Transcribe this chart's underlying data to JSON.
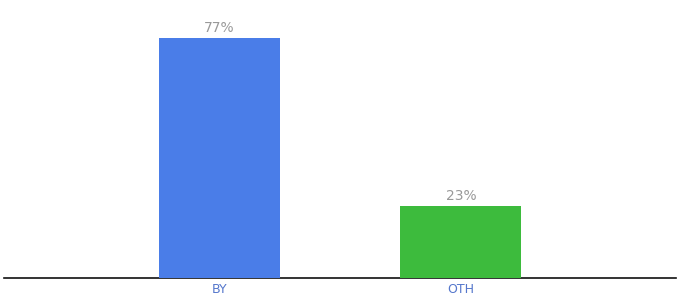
{
  "categories": [
    "BY",
    "OTH"
  ],
  "values": [
    77,
    23
  ],
  "bar_colors": [
    "#4a7de8",
    "#3dbb3d"
  ],
  "label_texts": [
    "77%",
    "23%"
  ],
  "ylim": [
    0,
    88
  ],
  "background_color": "#ffffff",
  "bar_width": 0.18,
  "label_fontsize": 10,
  "tick_fontsize": 9,
  "tick_color": "#5577cc",
  "label_color": "#999999",
  "x_positions": [
    0.32,
    0.68
  ],
  "xlim": [
    0.0,
    1.0
  ]
}
